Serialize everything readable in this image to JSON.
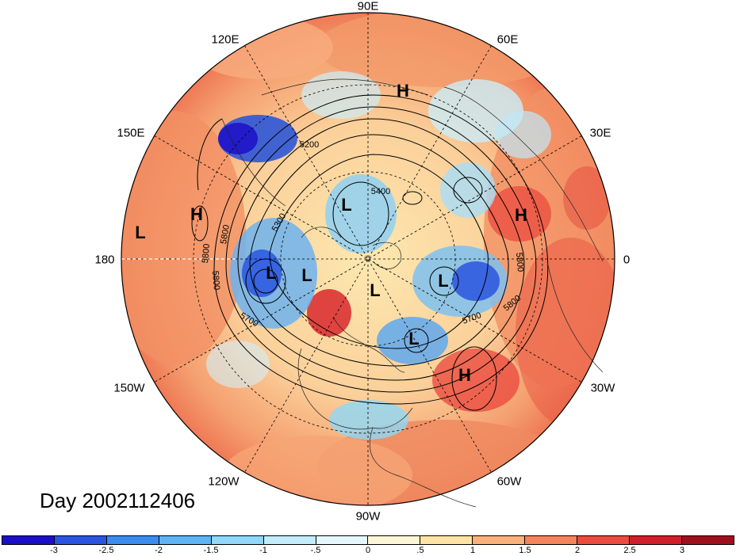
{
  "title": "Day 2002112406",
  "lon_labels": {
    "top": "90E",
    "upper_left": "120E",
    "upper_right": "60E",
    "left_upper": "150E",
    "right_upper": "30E",
    "left": "180",
    "right": "0",
    "left_lower": "150W",
    "right_lower": "30W",
    "lower_left": "120W",
    "lower_right": "60W",
    "bottom": "90W"
  },
  "pressure_systems": [
    {
      "label": "H",
      "name": "high-eurasia-north"
    },
    {
      "label": "H",
      "name": "high-north-pacific"
    },
    {
      "label": "L",
      "name": "low-pacific-west"
    },
    {
      "label": "H",
      "name": "high-europe"
    },
    {
      "label": "L",
      "name": "low-siberia"
    },
    {
      "label": "L",
      "name": "low-bering"
    },
    {
      "label": "L",
      "name": "low-alaska"
    },
    {
      "label": "L",
      "name": "low-pole"
    },
    {
      "label": "L",
      "name": "low-greenland"
    },
    {
      "label": "L",
      "name": "low-hudson"
    },
    {
      "label": "H",
      "name": "high-atlantic"
    }
  ],
  "contour_labels": [
    "5200",
    "5300",
    "5400",
    "5700",
    "5800",
    "5800",
    "5800",
    "5700",
    "5800",
    "5800"
  ],
  "colorbar": {
    "ticks": [
      "-3",
      "-2.5",
      "-2",
      "-1.5",
      "-1",
      "-.5",
      "0",
      ".5",
      "1",
      "1.5",
      "2",
      "2.5",
      "3"
    ],
    "colors": [
      "#1c0fc8",
      "#2a55e0",
      "#3c8cf0",
      "#5fb4f5",
      "#8fd8f7",
      "#c3ecfa",
      "#e6f7fb",
      "#fdf6d6",
      "#fde4a6",
      "#f9b27a",
      "#f4845c",
      "#ec4b3f",
      "#d01f2a",
      "#a00f1e"
    ]
  }
}
